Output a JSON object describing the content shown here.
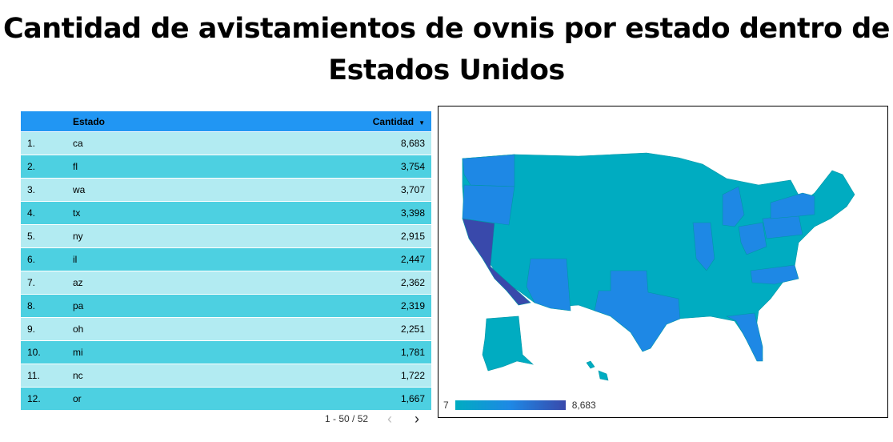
{
  "title": "Cantidad de avistamientos de ovnis por estado dentro de Estados Unidos",
  "table": {
    "headers": {
      "state": "Estado",
      "count": "Cantidad"
    },
    "rows": [
      {
        "idx": "1.",
        "state": "ca",
        "count": "8,683"
      },
      {
        "idx": "2.",
        "state": "fl",
        "count": "3,754"
      },
      {
        "idx": "3.",
        "state": "wa",
        "count": "3,707"
      },
      {
        "idx": "4.",
        "state": "tx",
        "count": "3,398"
      },
      {
        "idx": "5.",
        "state": "ny",
        "count": "2,915"
      },
      {
        "idx": "6.",
        "state": "il",
        "count": "2,447"
      },
      {
        "idx": "7.",
        "state": "az",
        "count": "2,362"
      },
      {
        "idx": "8.",
        "state": "pa",
        "count": "2,319"
      },
      {
        "idx": "9.",
        "state": "oh",
        "count": "2,251"
      },
      {
        "idx": "10.",
        "state": "mi",
        "count": "1,781"
      },
      {
        "idx": "11.",
        "state": "nc",
        "count": "1,722"
      },
      {
        "idx": "12.",
        "state": "or",
        "count": "1,667"
      }
    ],
    "pagination": "1 - 50 / 52"
  },
  "map": {
    "legend_min": "7",
    "legend_max": "8,683",
    "colors": {
      "low": "#00acc1",
      "mid": "#1e88e5",
      "high": "#3949ab"
    }
  },
  "chart_data": {
    "type": "table",
    "columns": [
      "Estado",
      "Cantidad"
    ],
    "categories": [
      "ca",
      "fl",
      "wa",
      "tx",
      "ny",
      "il",
      "az",
      "pa",
      "oh",
      "mi",
      "nc",
      "or"
    ],
    "values": [
      8683,
      3754,
      3707,
      3398,
      2915,
      2447,
      2362,
      2319,
      2251,
      1781,
      1722,
      1667
    ],
    "title": "Cantidad de avistamientos de ovnis por estado dentro de Estados Unidos",
    "color_scale_range": [
      7,
      8683
    ]
  }
}
